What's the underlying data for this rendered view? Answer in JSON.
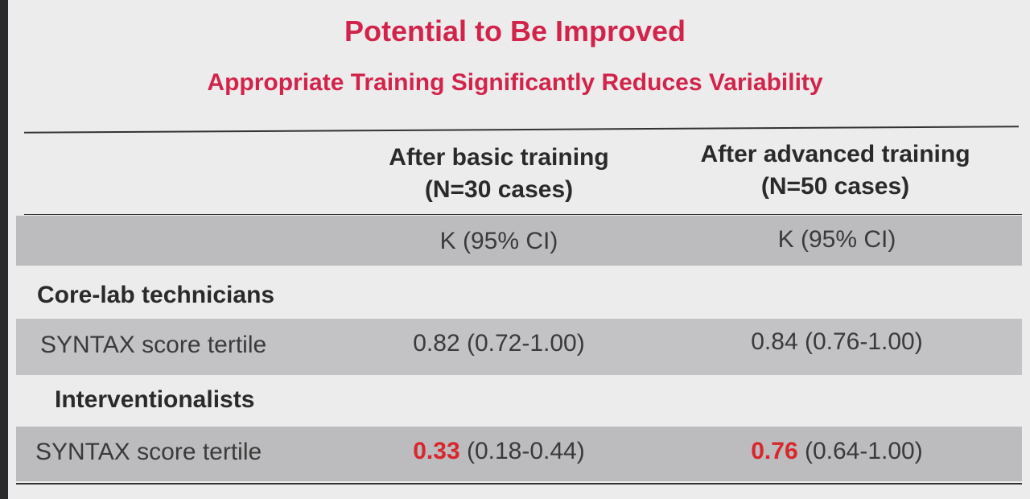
{
  "title": "Potential to Be Improved",
  "subtitle": "Appropriate Training Significantly Reduces Variability",
  "table": {
    "columns": [
      {
        "line1": "After basic training",
        "line2": "(N=30 cases)"
      },
      {
        "line1": "After advanced training",
        "line2": "(N=50 cases)"
      }
    ],
    "metric_row": [
      "K (95% CI)",
      "K (95% CI)"
    ],
    "groups": [
      {
        "label": "Core-lab technicians",
        "row_label": "SYNTAX score tertile",
        "values": [
          {
            "k": "0.82",
            "ci": "(0.72-1.00)",
            "highlight": false
          },
          {
            "k": "0.84",
            "ci": "(0.76-1.00)",
            "highlight": false
          }
        ]
      },
      {
        "label": "Interventionalists",
        "row_label": "SYNTAX score tertile",
        "values": [
          {
            "k": "0.33",
            "ci": "(0.18-0.44)",
            "highlight": true
          },
          {
            "k": "0.76",
            "ci": "(0.64-1.00)",
            "highlight": true
          }
        ]
      }
    ]
  },
  "colors": {
    "accent": "#d2244a",
    "highlight": "#d9262c",
    "band": "#bcbcbf",
    "background": "#ececec"
  }
}
